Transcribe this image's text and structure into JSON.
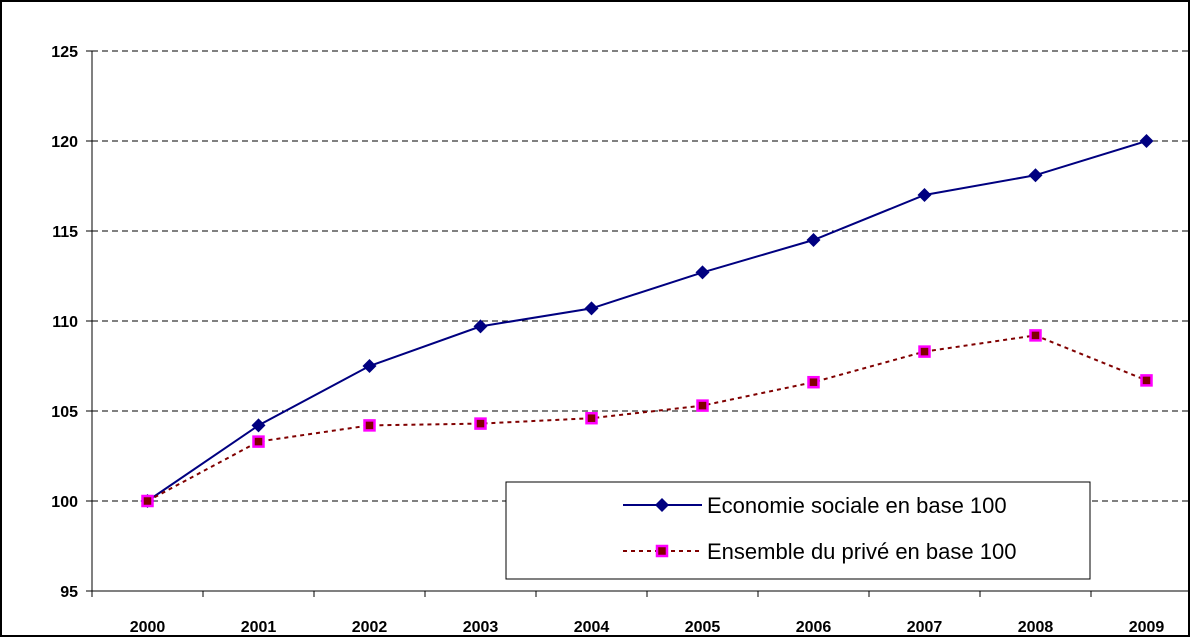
{
  "chart_data": {
    "type": "line",
    "title": "",
    "xlabel": "",
    "ylabel": "",
    "categories": [
      "2000",
      "2001",
      "2002",
      "2003",
      "2004",
      "2005",
      "2006",
      "2007",
      "2008",
      "2009"
    ],
    "ylim": [
      95,
      125
    ],
    "yticks": [
      95,
      100,
      105,
      110,
      115,
      120,
      125
    ],
    "grid": "horizontal dashed",
    "legend_position": "bottom-right",
    "series": [
      {
        "name": "Economie sociale en base 100",
        "values": [
          100,
          104.2,
          107.5,
          109.7,
          110.7,
          112.7,
          114.5,
          117.0,
          118.1,
          120.0
        ],
        "color": "#000080",
        "line_style": "solid",
        "marker": "diamond"
      },
      {
        "name": "Ensemble du privé en base 100",
        "values": [
          100,
          103.3,
          104.2,
          104.3,
          104.6,
          105.3,
          106.6,
          108.3,
          109.2,
          106.7
        ],
        "color": "#800000",
        "marker_fill": "#800000",
        "marker_edge": "#ff00ff",
        "line_style": "dashed",
        "marker": "square"
      }
    ]
  }
}
